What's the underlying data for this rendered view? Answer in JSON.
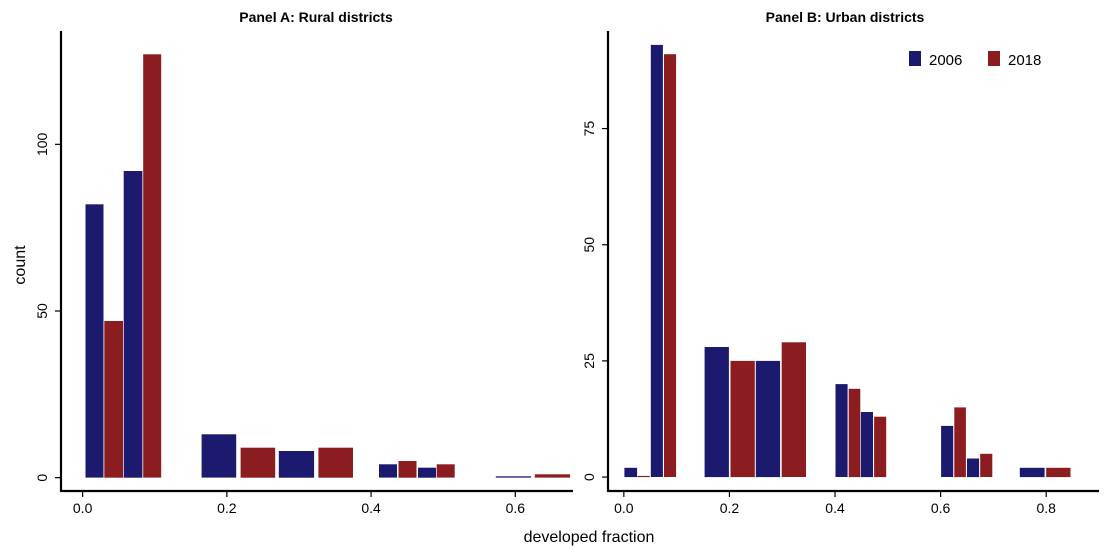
{
  "colors": {
    "s2006": "#1b1a6e",
    "s2018": "#8b1c1f"
  },
  "legend": {
    "entries": [
      "2006",
      "2018"
    ],
    "position": "top-right"
  },
  "xlabel": "developed fraction",
  "ylabel": "count",
  "chart_data": [
    {
      "type": "bar",
      "title": "Panel A: Rural districts",
      "xlim": [
        -0.03,
        0.68
      ],
      "ylim": [
        -4,
        134
      ],
      "xticks": [
        "0.0",
        "0.2",
        "0.4",
        "0.6"
      ],
      "xtick_values": [
        0.0,
        0.2,
        0.4,
        0.6
      ],
      "yticks": [
        "0",
        "50",
        "100"
      ],
      "ytick_values": [
        0,
        50,
        100
      ],
      "series": [
        {
          "name": "2006",
          "bars": [
            {
              "x0": 0.004,
              "x1": 0.029,
              "y": 82
            },
            {
              "x0": 0.057,
              "x1": 0.083,
              "y": 92
            },
            {
              "x0": 0.165,
              "x1": 0.213,
              "y": 13
            },
            {
              "x0": 0.272,
              "x1": 0.321,
              "y": 8
            },
            {
              "x0": 0.411,
              "x1": 0.436,
              "y": 4
            },
            {
              "x0": 0.465,
              "x1": 0.49,
              "y": 3
            },
            {
              "x0": 0.573,
              "x1": 0.622,
              "y": 0.4
            }
          ]
        },
        {
          "name": "2018",
          "bars": [
            {
              "x0": 0.03,
              "x1": 0.056,
              "y": 47
            },
            {
              "x0": 0.084,
              "x1": 0.109,
              "y": 127
            },
            {
              "x0": 0.219,
              "x1": 0.267,
              "y": 9
            },
            {
              "x0": 0.327,
              "x1": 0.375,
              "y": 9
            },
            {
              "x0": 0.438,
              "x1": 0.463,
              "y": 5
            },
            {
              "x0": 0.491,
              "x1": 0.516,
              "y": 4
            },
            {
              "x0": 0.627,
              "x1": 0.676,
              "y": 1
            }
          ]
        }
      ]
    },
    {
      "type": "bar",
      "title": "Panel B: Urban districts",
      "xlim": [
        -0.03,
        0.9
      ],
      "ylim": [
        -3,
        96
      ],
      "xticks": [
        "0.0",
        "0.2",
        "0.4",
        "0.6",
        "0.8"
      ],
      "xtick_values": [
        0.0,
        0.2,
        0.4,
        0.6,
        0.8
      ],
      "yticks": [
        "0",
        "25",
        "50",
        "75"
      ],
      "ytick_values": [
        0,
        25,
        50,
        75
      ],
      "series": [
        {
          "name": "2006",
          "bars": [
            {
              "x0": 0.001,
              "x1": 0.025,
              "y": 2
            },
            {
              "x0": 0.051,
              "x1": 0.074,
              "y": 93
            },
            {
              "x0": 0.153,
              "x1": 0.199,
              "y": 28
            },
            {
              "x0": 0.25,
              "x1": 0.296,
              "y": 25
            },
            {
              "x0": 0.401,
              "x1": 0.424,
              "y": 20
            },
            {
              "x0": 0.449,
              "x1": 0.472,
              "y": 14
            },
            {
              "x0": 0.601,
              "x1": 0.624,
              "y": 11
            },
            {
              "x0": 0.65,
              "x1": 0.673,
              "y": 4
            },
            {
              "x0": 0.75,
              "x1": 0.797,
              "y": 2
            }
          ]
        },
        {
          "name": "2018",
          "bars": [
            {
              "x0": 0.026,
              "x1": 0.049,
              "y": 0.25
            },
            {
              "x0": 0.076,
              "x1": 0.099,
              "y": 91
            },
            {
              "x0": 0.202,
              "x1": 0.248,
              "y": 25
            },
            {
              "x0": 0.299,
              "x1": 0.345,
              "y": 29
            },
            {
              "x0": 0.426,
              "x1": 0.448,
              "y": 19
            },
            {
              "x0": 0.474,
              "x1": 0.497,
              "y": 13
            },
            {
              "x0": 0.626,
              "x1": 0.648,
              "y": 15
            },
            {
              "x0": 0.675,
              "x1": 0.698,
              "y": 5
            },
            {
              "x0": 0.8,
              "x1": 0.846,
              "y": 2
            }
          ]
        }
      ]
    }
  ]
}
